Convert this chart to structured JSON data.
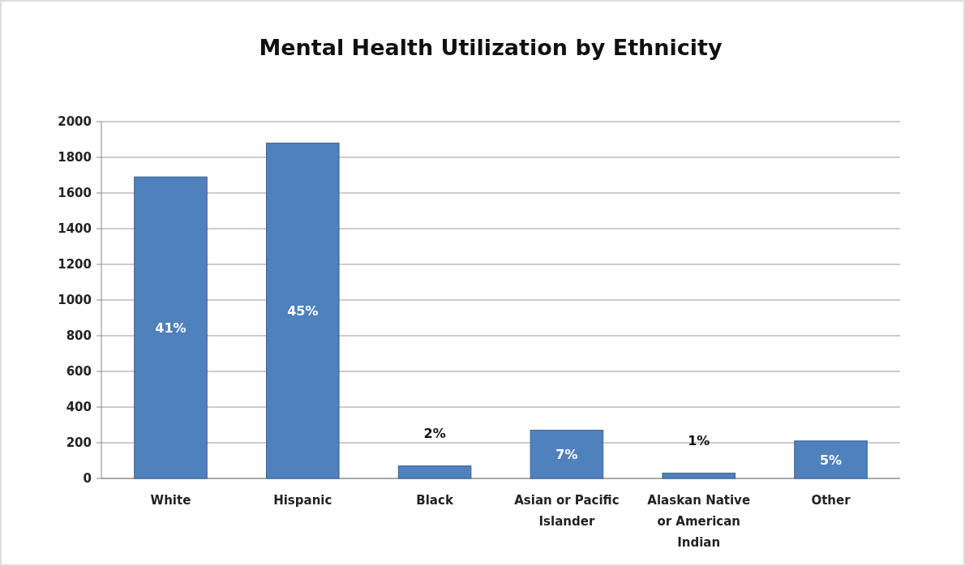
{
  "chart_data": {
    "type": "bar",
    "title": "Mental Health Utilization by Ethnicity",
    "categories": [
      "White",
      "Hispanic",
      "Black",
      "Asian or Pacific Islander",
      "Alaskan Native or American Indian",
      "Other"
    ],
    "values": [
      1690,
      1880,
      70,
      270,
      30,
      210
    ],
    "annotations": [
      "41%",
      "45%",
      "2%",
      "7%",
      "1%",
      "5%"
    ],
    "color": "#4f81bd",
    "ylim": [
      0,
      2000
    ],
    "yticks": [
      0,
      200,
      400,
      600,
      800,
      1000,
      1200,
      1400,
      1600,
      1800,
      2000
    ],
    "grid": "y"
  }
}
